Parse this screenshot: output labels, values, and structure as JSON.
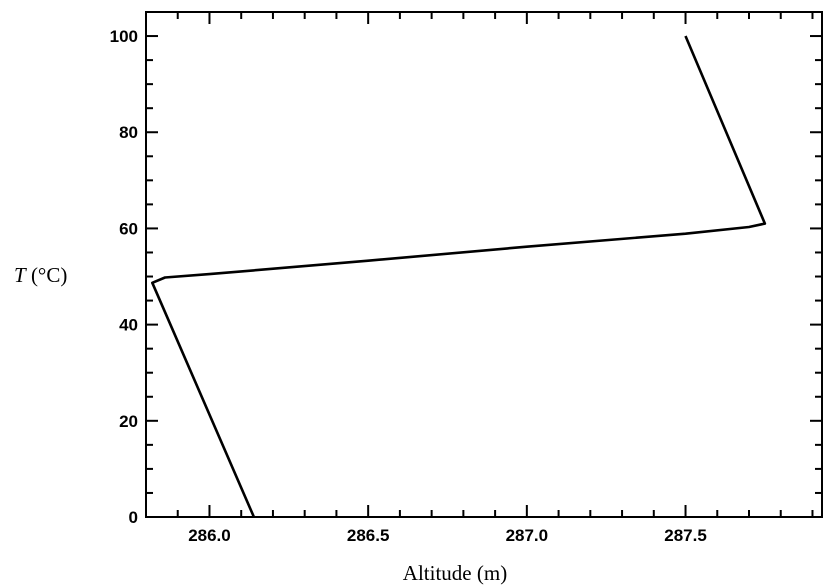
{
  "chart_data": {
    "type": "line",
    "title": "",
    "xlabel": "Altitude (m)",
    "ylabel_var": "T",
    "ylabel_unit": " (°C)",
    "xlim": [
      285.8,
      287.93
    ],
    "ylim": [
      0,
      105
    ],
    "x_ticks": [
      286.0,
      286.5,
      287.0,
      287.5
    ],
    "x_tick_labels": [
      "286.0",
      "286.5",
      "287.0",
      "287.5"
    ],
    "y_ticks": [
      0,
      20,
      40,
      60,
      80,
      100
    ],
    "y_tick_labels": [
      "0",
      "20",
      "40",
      "60",
      "80",
      "100"
    ],
    "grid": false,
    "series": [
      {
        "points": [
          {
            "x": 286.14,
            "y": 0
          },
          {
            "x": 285.82,
            "y": 48.7
          },
          {
            "x": 285.86,
            "y": 49.8
          },
          {
            "x": 286.0,
            "y": 50.5
          },
          {
            "x": 286.5,
            "y": 53.3
          },
          {
            "x": 287.0,
            "y": 56.2
          },
          {
            "x": 287.5,
            "y": 58.9
          },
          {
            "x": 287.7,
            "y": 60.3
          },
          {
            "x": 287.75,
            "y": 61.0
          },
          {
            "x": 287.5,
            "y": 100
          }
        ]
      }
    ]
  }
}
